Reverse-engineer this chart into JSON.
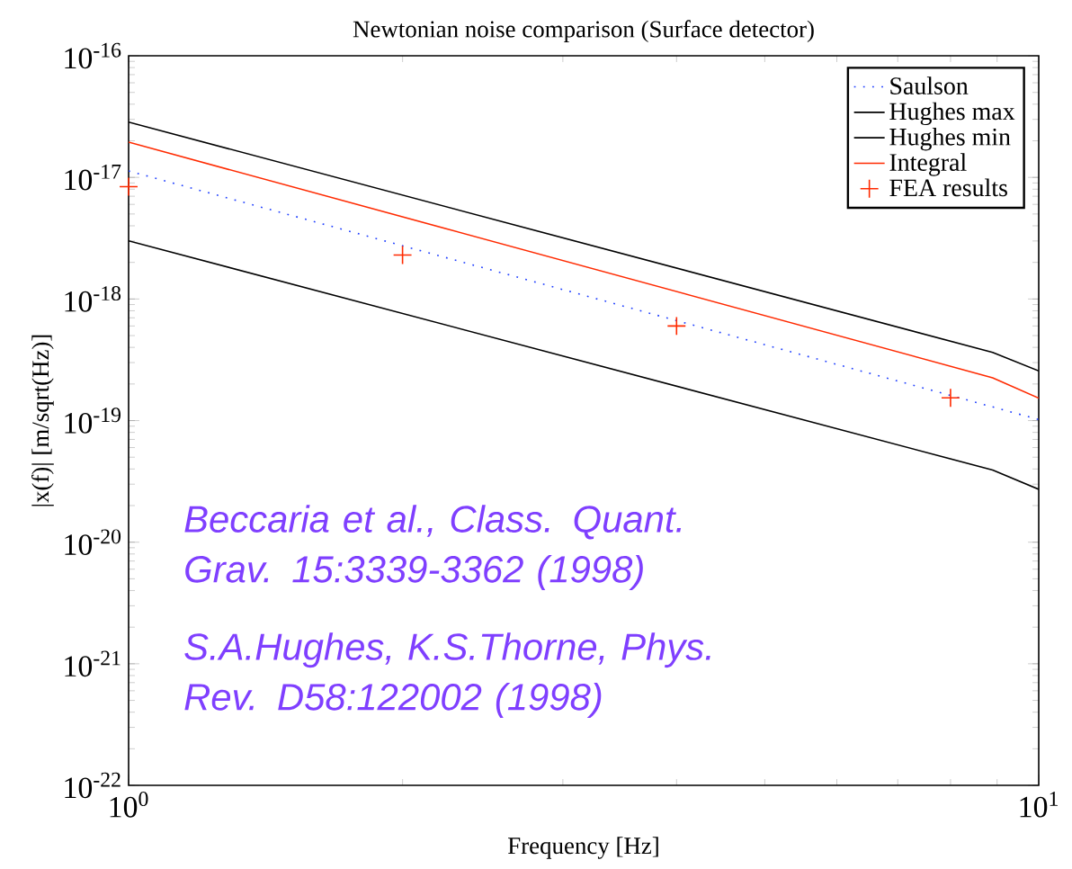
{
  "chart_data": {
    "type": "line",
    "title": "Newtonian noise comparison (Surface detector)",
    "xlabel": "Frequency [Hz]",
    "ylabel": "|x(f)| [m/sqrt(Hz)]",
    "log": "xy",
    "xlim": [
      1,
      10
    ],
    "ylim": [
      1e-22,
      1e-16
    ],
    "xticks": [
      {
        "value": 1,
        "label": "10$^{0}$"
      },
      {
        "value": 10,
        "label": "10$^{1}$"
      }
    ],
    "yticks": [
      {
        "value": 1e-22,
        "label": "10$^{-22}$"
      },
      {
        "value": 1e-21,
        "label": "10$^{-21}$"
      },
      {
        "value": 1e-20,
        "label": "10$^{-20}$"
      },
      {
        "value": 1e-19,
        "label": "10$^{-19}$"
      },
      {
        "value": 1e-18,
        "label": "10$^{-18}$"
      },
      {
        "value": 1e-17,
        "label": "10$^{-17}$"
      },
      {
        "value": 1e-16,
        "label": "10$^{-16}$"
      }
    ],
    "grid": false,
    "legend": "top right",
    "series": [
      {
        "name": "Saulson",
        "color": "#1f3fff",
        "line_style": "dotted",
        "x": [
          1,
          10
        ],
        "values": [
          1.13e-17,
          1.02e-19
        ]
      },
      {
        "name": "Hughes max",
        "color": "#000000",
        "line_style": "solid",
        "x": [
          1,
          8.9,
          10
        ],
        "values": [
          2.85e-17,
          3.64e-19,
          2.56e-19
        ]
      },
      {
        "name": "Hughes min",
        "color": "#000000",
        "line_style": "solid",
        "x": [
          1,
          8.9,
          10
        ],
        "values": [
          3.01e-18,
          3.92e-20,
          2.72e-20
        ]
      },
      {
        "name": "Integral",
        "color": "#ff2a00",
        "line_style": "solid",
        "x": [
          1,
          8.9,
          10
        ],
        "values": [
          1.95e-17,
          2.25e-19,
          1.53e-19
        ]
      },
      {
        "name": "FEA results",
        "type": "scatter",
        "color": "#ff2a00",
        "marker": "cross",
        "x": [
          1,
          2,
          4,
          8
        ],
        "values": [
          8.4e-18,
          2.3e-18,
          6e-19,
          1.54e-19
        ]
      }
    ],
    "annotations": [
      "Beccaria et al., Class. Quant. Grav. 15:3339-3362 (1998)",
      "S.A.Hughes, K.S.Thorne, Phys. Rev. D58:122002 (1998)"
    ]
  }
}
